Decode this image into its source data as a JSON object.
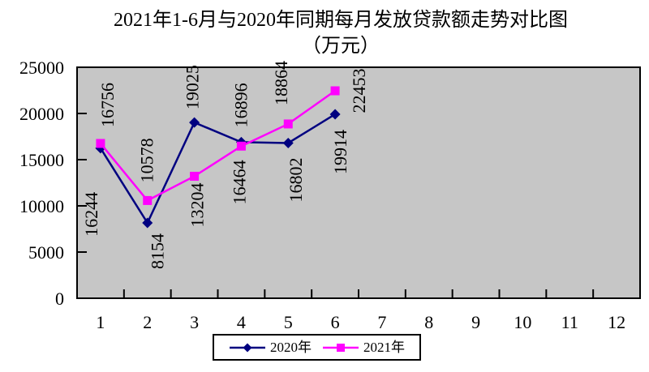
{
  "title": {
    "line1": "2021年1-6月与2020年同期每月发放贷款额走势对比图",
    "line2": "（万元）"
  },
  "chart_data": {
    "type": "line",
    "title": "2021年1-6月与2020年同期每月发放贷款额走势对比图",
    "unit_label": "（万元）",
    "categories": [
      "1",
      "2",
      "3",
      "4",
      "5",
      "6",
      "7",
      "8",
      "9",
      "10",
      "11",
      "12"
    ],
    "series": [
      {
        "name": "2020年",
        "color": "#000080",
        "marker": "diamond",
        "values": [
          16244,
          8154,
          19025,
          16896,
          16802,
          19914
        ]
      },
      {
        "name": "2021年",
        "color": "#FF00FF",
        "marker": "square",
        "values": [
          16756,
          10578,
          13204,
          16464,
          18864,
          22453
        ]
      }
    ],
    "ylim": [
      0,
      25000
    ],
    "yticks": [
      0,
      5000,
      10000,
      15000,
      20000,
      25000
    ],
    "grid": false,
    "plot_background": "#C6C6C6",
    "legend_position": "bottom",
    "data_label_rotation_deg": 90
  }
}
